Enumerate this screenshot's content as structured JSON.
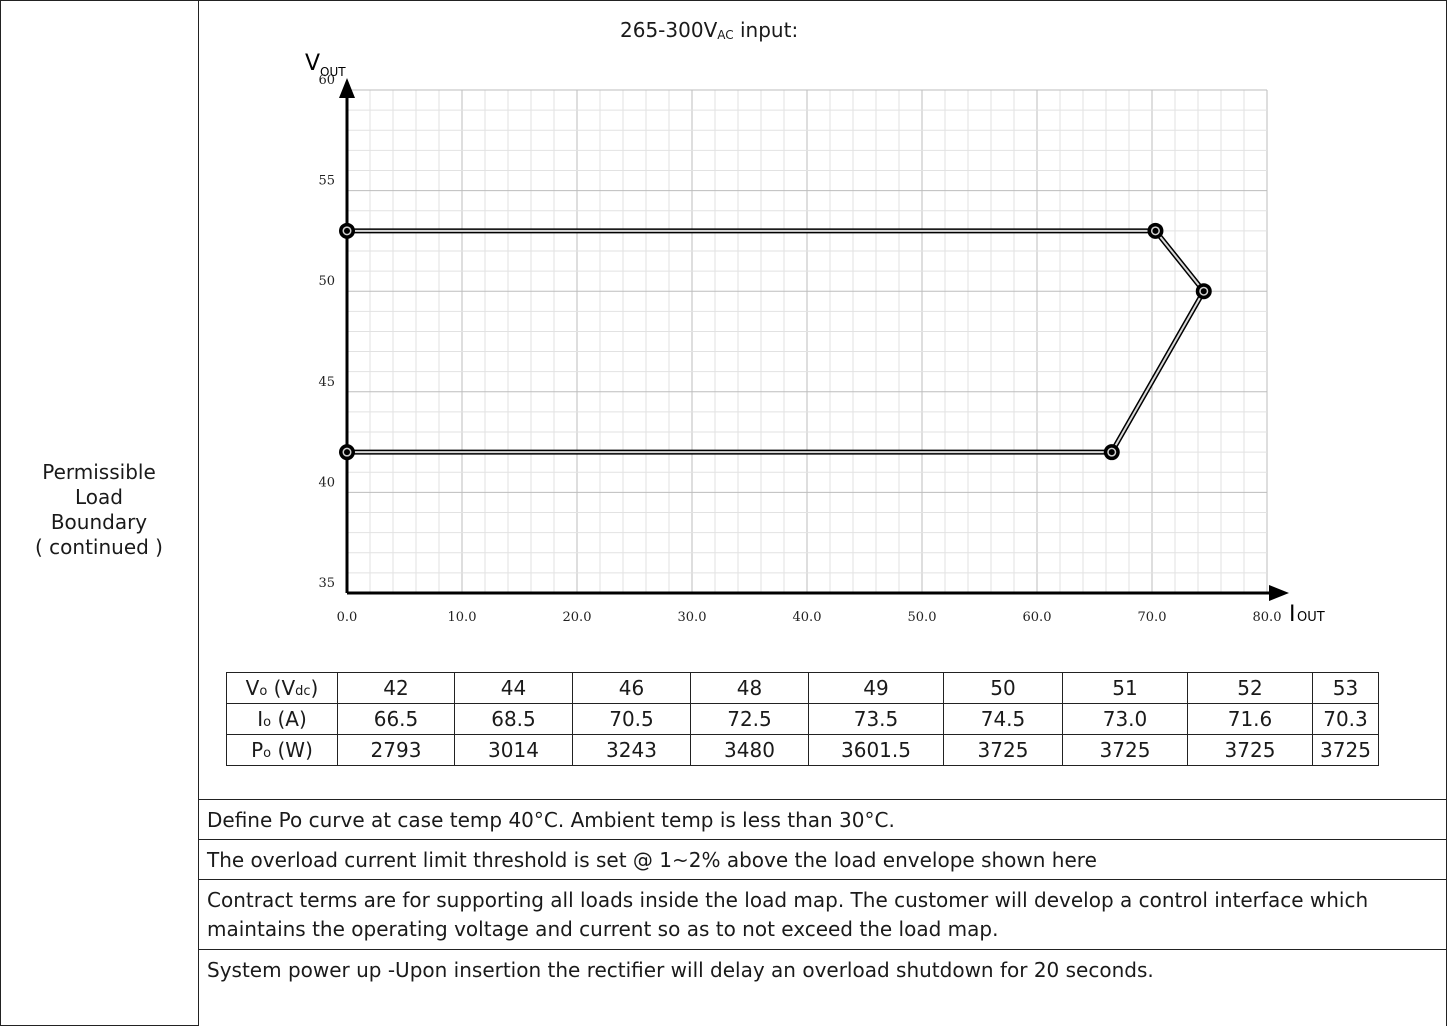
{
  "left_label": [
    "Permissible",
    "Load",
    "Boundary",
    "( continued )"
  ],
  "chart_title": {
    "prefix": "265-300V",
    "sub": "AC",
    "suffix": " input:"
  },
  "chart_data": {
    "type": "line",
    "xlabel": "I_OUT",
    "ylabel": "V_OUT",
    "xlim": [
      0,
      80
    ],
    "ylim": [
      35,
      60
    ],
    "x_ticks": [
      "0.0",
      "10.0",
      "20.0",
      "30.0",
      "40.0",
      "50.0",
      "60.0",
      "70.0",
      "80.0"
    ],
    "y_ticks": [
      "60",
      "55",
      "50",
      "45",
      "40",
      "35"
    ],
    "grid": true,
    "series": [
      {
        "points": [
          [
            0,
            53
          ],
          [
            70.3,
            53
          ],
          [
            74.5,
            50
          ],
          [
            66.5,
            42
          ],
          [
            0,
            42
          ]
        ],
        "marked_points": [
          [
            0,
            53
          ],
          [
            70.3,
            53
          ],
          [
            74.5,
            50
          ],
          [
            66.5,
            42
          ],
          [
            0,
            42
          ]
        ]
      }
    ]
  },
  "table": {
    "row_labels": [
      {
        "main": "V",
        "sub": "o",
        "rest": " (V",
        "sub2": "dc",
        "end": ")"
      },
      {
        "main": "I",
        "sub": "o",
        "rest": " (A)",
        "sub2": "",
        "end": ""
      },
      {
        "main": "P",
        "sub": "o",
        "rest": " (W)",
        "sub2": "",
        "end": ""
      }
    ],
    "rows": [
      [
        "42",
        "44",
        "46",
        "48",
        "49",
        "50",
        "51",
        "52",
        "53"
      ],
      [
        "66.5",
        "68.5",
        "70.5",
        "72.5",
        "73.5",
        "74.5",
        "73.0",
        "71.6",
        "70.3"
      ],
      [
        "2793",
        "3014",
        "3243",
        "3480",
        "3601.5",
        "3725",
        "3725",
        "3725",
        "3725"
      ]
    ]
  },
  "notes": [
    "Define Po curve at case temp 40°C. Ambient temp is less than 30°C.",
    "The overload current limit threshold is set @ 1~2% above the load envelope shown here",
    "Contract terms are for supporting all loads inside the load map. The customer will develop a control interface which maintains the operating voltage and current so as to not exceed the load map.",
    "System power up -Upon insertion the rectifier will delay an overload shutdown for 20 seconds."
  ]
}
